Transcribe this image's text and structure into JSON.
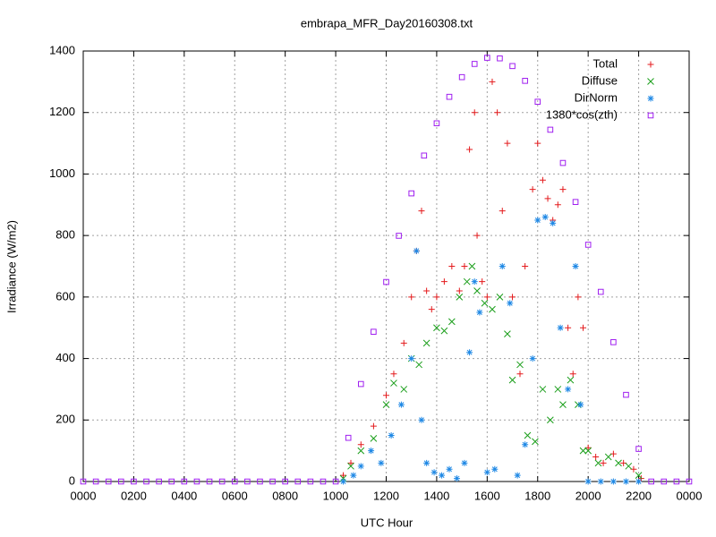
{
  "chart_data": {
    "type": "scatter",
    "title": "embrapa_MFR_Day20160308.txt",
    "xlabel": "UTC Hour",
    "ylabel": "Irradiance (W/m2)",
    "xlim": [
      0,
      24
    ],
    "ylim": [
      0,
      1400
    ],
    "xticks": [
      {
        "value": 0,
        "label": "0000"
      },
      {
        "value": 2,
        "label": "0200"
      },
      {
        "value": 4,
        "label": "0400"
      },
      {
        "value": 6,
        "label": "0600"
      },
      {
        "value": 8,
        "label": "0800"
      },
      {
        "value": 10,
        "label": "1000"
      },
      {
        "value": 12,
        "label": "1200"
      },
      {
        "value": 14,
        "label": "1400"
      },
      {
        "value": 16,
        "label": "1600"
      },
      {
        "value": 18,
        "label": "1800"
      },
      {
        "value": 20,
        "label": "2000"
      },
      {
        "value": 22,
        "label": "2200"
      },
      {
        "value": 24,
        "label": "0000"
      }
    ],
    "yticks": [
      0,
      200,
      400,
      600,
      800,
      1000,
      1200,
      1400
    ],
    "grid": true,
    "legend": "top-right",
    "series": [
      {
        "name": "Total",
        "color": "#e41a1c",
        "marker": "plus",
        "x": [
          10.3,
          10.6,
          11,
          11.5,
          12,
          12.3,
          12.7,
          13,
          13.2,
          13.4,
          13.6,
          13.8,
          14,
          14.3,
          14.6,
          14.9,
          15.1,
          15.3,
          15.5,
          15.6,
          15.8,
          16,
          16.2,
          16.4,
          16.6,
          16.8,
          17,
          17.3,
          17.5,
          17.8,
          18,
          18.2,
          18.4,
          18.6,
          18.8,
          19,
          19.2,
          19.4,
          19.6,
          19.8,
          20,
          20.3,
          20.6,
          21,
          21.4,
          21.8,
          22.1
        ],
        "values": [
          20,
          60,
          120,
          180,
          280,
          350,
          450,
          600,
          750,
          880,
          620,
          560,
          600,
          650,
          700,
          620,
          700,
          1080,
          1200,
          800,
          650,
          600,
          1300,
          1200,
          880,
          1100,
          600,
          350,
          700,
          950,
          1100,
          980,
          920,
          850,
          900,
          950,
          500,
          350,
          600,
          500,
          110,
          80,
          60,
          90,
          60,
          40,
          10
        ]
      },
      {
        "name": "Diffuse",
        "color": "#1a9e1a",
        "marker": "cross",
        "x": [
          10.3,
          10.6,
          11,
          11.5,
          12,
          12.3,
          12.7,
          13,
          13.3,
          13.6,
          14,
          14.3,
          14.6,
          14.9,
          15.2,
          15.4,
          15.6,
          15.9,
          16.2,
          16.5,
          16.8,
          17,
          17.3,
          17.6,
          17.9,
          18.2,
          18.5,
          18.8,
          19,
          19.3,
          19.6,
          19.8,
          20,
          20.4,
          20.8,
          21.2,
          21.6,
          22
        ],
        "values": [
          10,
          50,
          100,
          140,
          250,
          320,
          300,
          400,
          380,
          450,
          500,
          490,
          520,
          600,
          650,
          700,
          620,
          580,
          560,
          600,
          480,
          330,
          380,
          150,
          130,
          300,
          200,
          300,
          250,
          330,
          250,
          100,
          100,
          60,
          80,
          60,
          50,
          20
        ]
      },
      {
        "name": "DirNorm",
        "color": "#1e88e5",
        "marker": "star",
        "x": [
          10.3,
          10.7,
          11,
          11.4,
          11.8,
          12.2,
          12.6,
          13,
          13.2,
          13.4,
          13.6,
          13.9,
          14.2,
          14.5,
          14.8,
          15.1,
          15.3,
          15.5,
          15.7,
          16,
          16.3,
          16.6,
          16.9,
          17.2,
          17.5,
          17.8,
          18,
          18.3,
          18.6,
          18.9,
          19.2,
          19.5,
          19.7,
          20,
          20.5,
          21,
          21.5,
          22
        ],
        "values": [
          0,
          20,
          50,
          100,
          60,
          150,
          250,
          400,
          750,
          200,
          60,
          30,
          20,
          40,
          10,
          60,
          420,
          650,
          550,
          30,
          40,
          700,
          580,
          20,
          120,
          400,
          850,
          860,
          840,
          500,
          300,
          700,
          250,
          0,
          0,
          0,
          0,
          0
        ]
      },
      {
        "name": "1380*cos(zth)",
        "color": "#a020f0",
        "marker": "square",
        "x": [
          0,
          0.5,
          1,
          1.5,
          2,
          2.5,
          3,
          3.5,
          4,
          4.5,
          5,
          5.5,
          6,
          6.5,
          7,
          7.5,
          8,
          8.5,
          9,
          9.5,
          10,
          10.5,
          11,
          11.5,
          12,
          12.5,
          13,
          13.5,
          14,
          14.5,
          15,
          15.5,
          16,
          16.5,
          17,
          17.5,
          18,
          18.5,
          19,
          19.5,
          20,
          20.5,
          21,
          21.5,
          22,
          22.5,
          23,
          23.5,
          24
        ],
        "values": [
          0,
          0,
          0,
          0,
          0,
          0,
          0,
          0,
          0,
          0,
          0,
          0,
          0,
          0,
          0,
          0,
          0,
          0,
          0,
          0,
          0,
          142,
          317,
          487,
          649,
          799,
          937,
          1060,
          1165,
          1251,
          1315,
          1358,
          1378,
          1376,
          1351,
          1303,
          1235,
          1144,
          1036,
          909,
          770,
          617,
          453,
          282,
          106,
          0,
          0,
          0,
          0
        ]
      }
    ]
  }
}
